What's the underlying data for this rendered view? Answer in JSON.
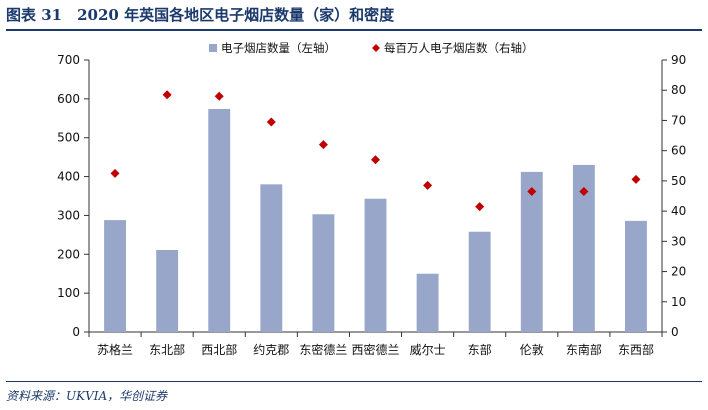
{
  "title": "图表 31　2020 年英国各地区电子烟店数量（家）和密度",
  "source": "资料来源：UKVIA，华创证券",
  "chart_data": {
    "type": "bar",
    "categories": [
      "苏格兰",
      "东北部",
      "西北部",
      "约克郡",
      "东密德兰",
      "西密德兰",
      "威尔士",
      "东部",
      "伦敦",
      "东南部",
      "东西部"
    ],
    "series": [
      {
        "name": "电子烟店数量（左轴）",
        "type": "bar",
        "axis": "left",
        "color": "#98a6c9",
        "values": [
          288,
          211,
          574,
          380,
          303,
          343,
          150,
          258,
          412,
          430,
          286
        ]
      },
      {
        "name": "每百万人电子烟店数（右轴）",
        "type": "scatter",
        "axis": "right",
        "color": "#c00000",
        "values": [
          52.5,
          78.5,
          78,
          69.5,
          62,
          57,
          48.5,
          41.5,
          46.5,
          46.5,
          50.5
        ]
      }
    ],
    "y_left": {
      "min": 0,
      "max": 700,
      "step": 100
    },
    "y_right": {
      "min": 0,
      "max": 90,
      "step": 10
    },
    "legend_position": "top-center",
    "grid": false
  }
}
